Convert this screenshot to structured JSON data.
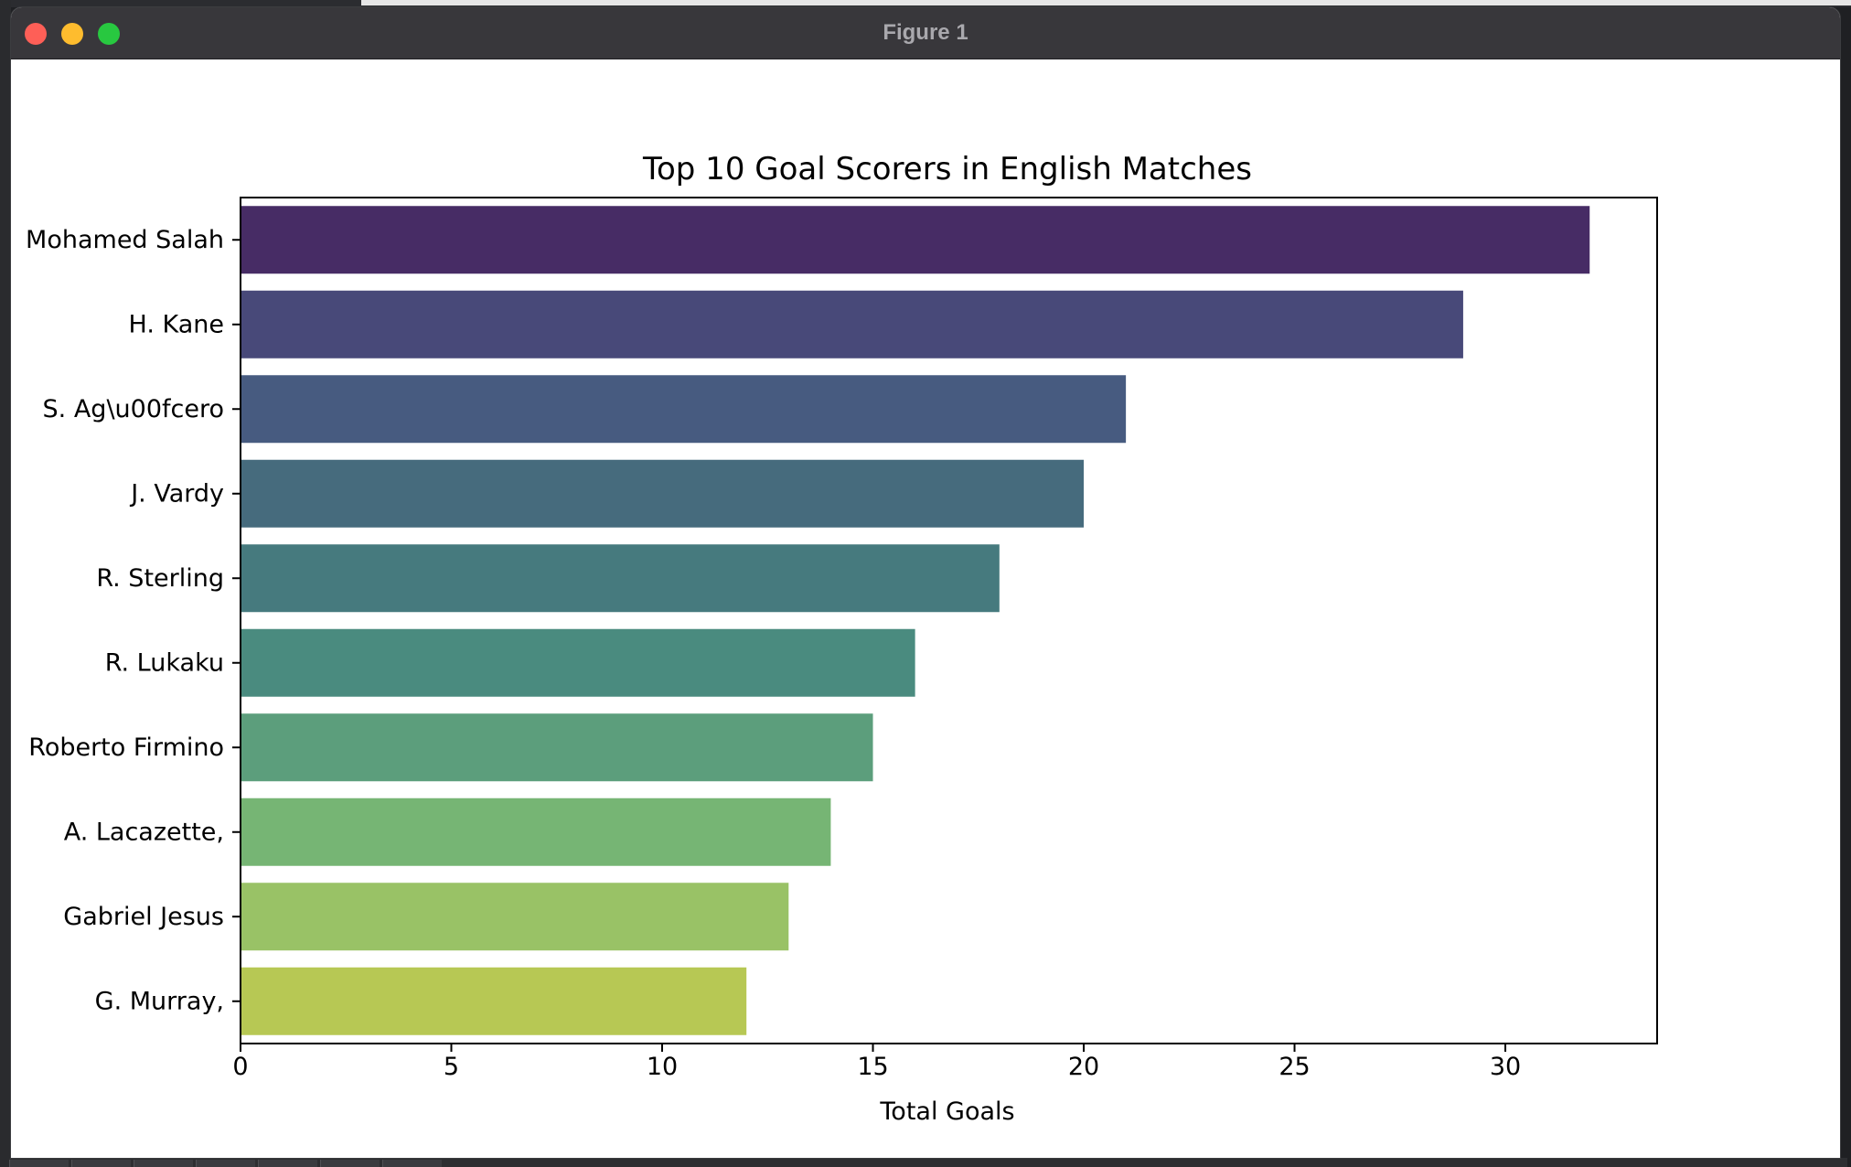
{
  "window": {
    "title": "Figure 1"
  },
  "chart_data": {
    "type": "bar",
    "orientation": "horizontal",
    "title": "Top 10 Goal Scorers in English Matches",
    "xlabel": "Total Goals",
    "ylabel": "",
    "categories": [
      "Mohamed Salah",
      "H. Kane",
      "S. Ag\\u00fcero",
      "J. Vardy",
      "R. Sterling",
      "R. Lukaku",
      "Roberto Firmino",
      "A. Lacazette,",
      "Gabriel Jesus",
      "G. Murray,"
    ],
    "values": [
      32,
      29,
      21,
      20,
      18,
      16,
      15,
      14,
      13,
      12
    ],
    "colors": [
      "#472c65",
      "#484979",
      "#475b80",
      "#466b7d",
      "#467a7e",
      "#4a8b7f",
      "#5c9e7c",
      "#76b574",
      "#99c266",
      "#b7c854"
    ],
    "xlim": [
      0,
      33.6
    ],
    "xticks": [
      0,
      5,
      10,
      15,
      20,
      25,
      30
    ],
    "grid": false,
    "legend": "none"
  }
}
